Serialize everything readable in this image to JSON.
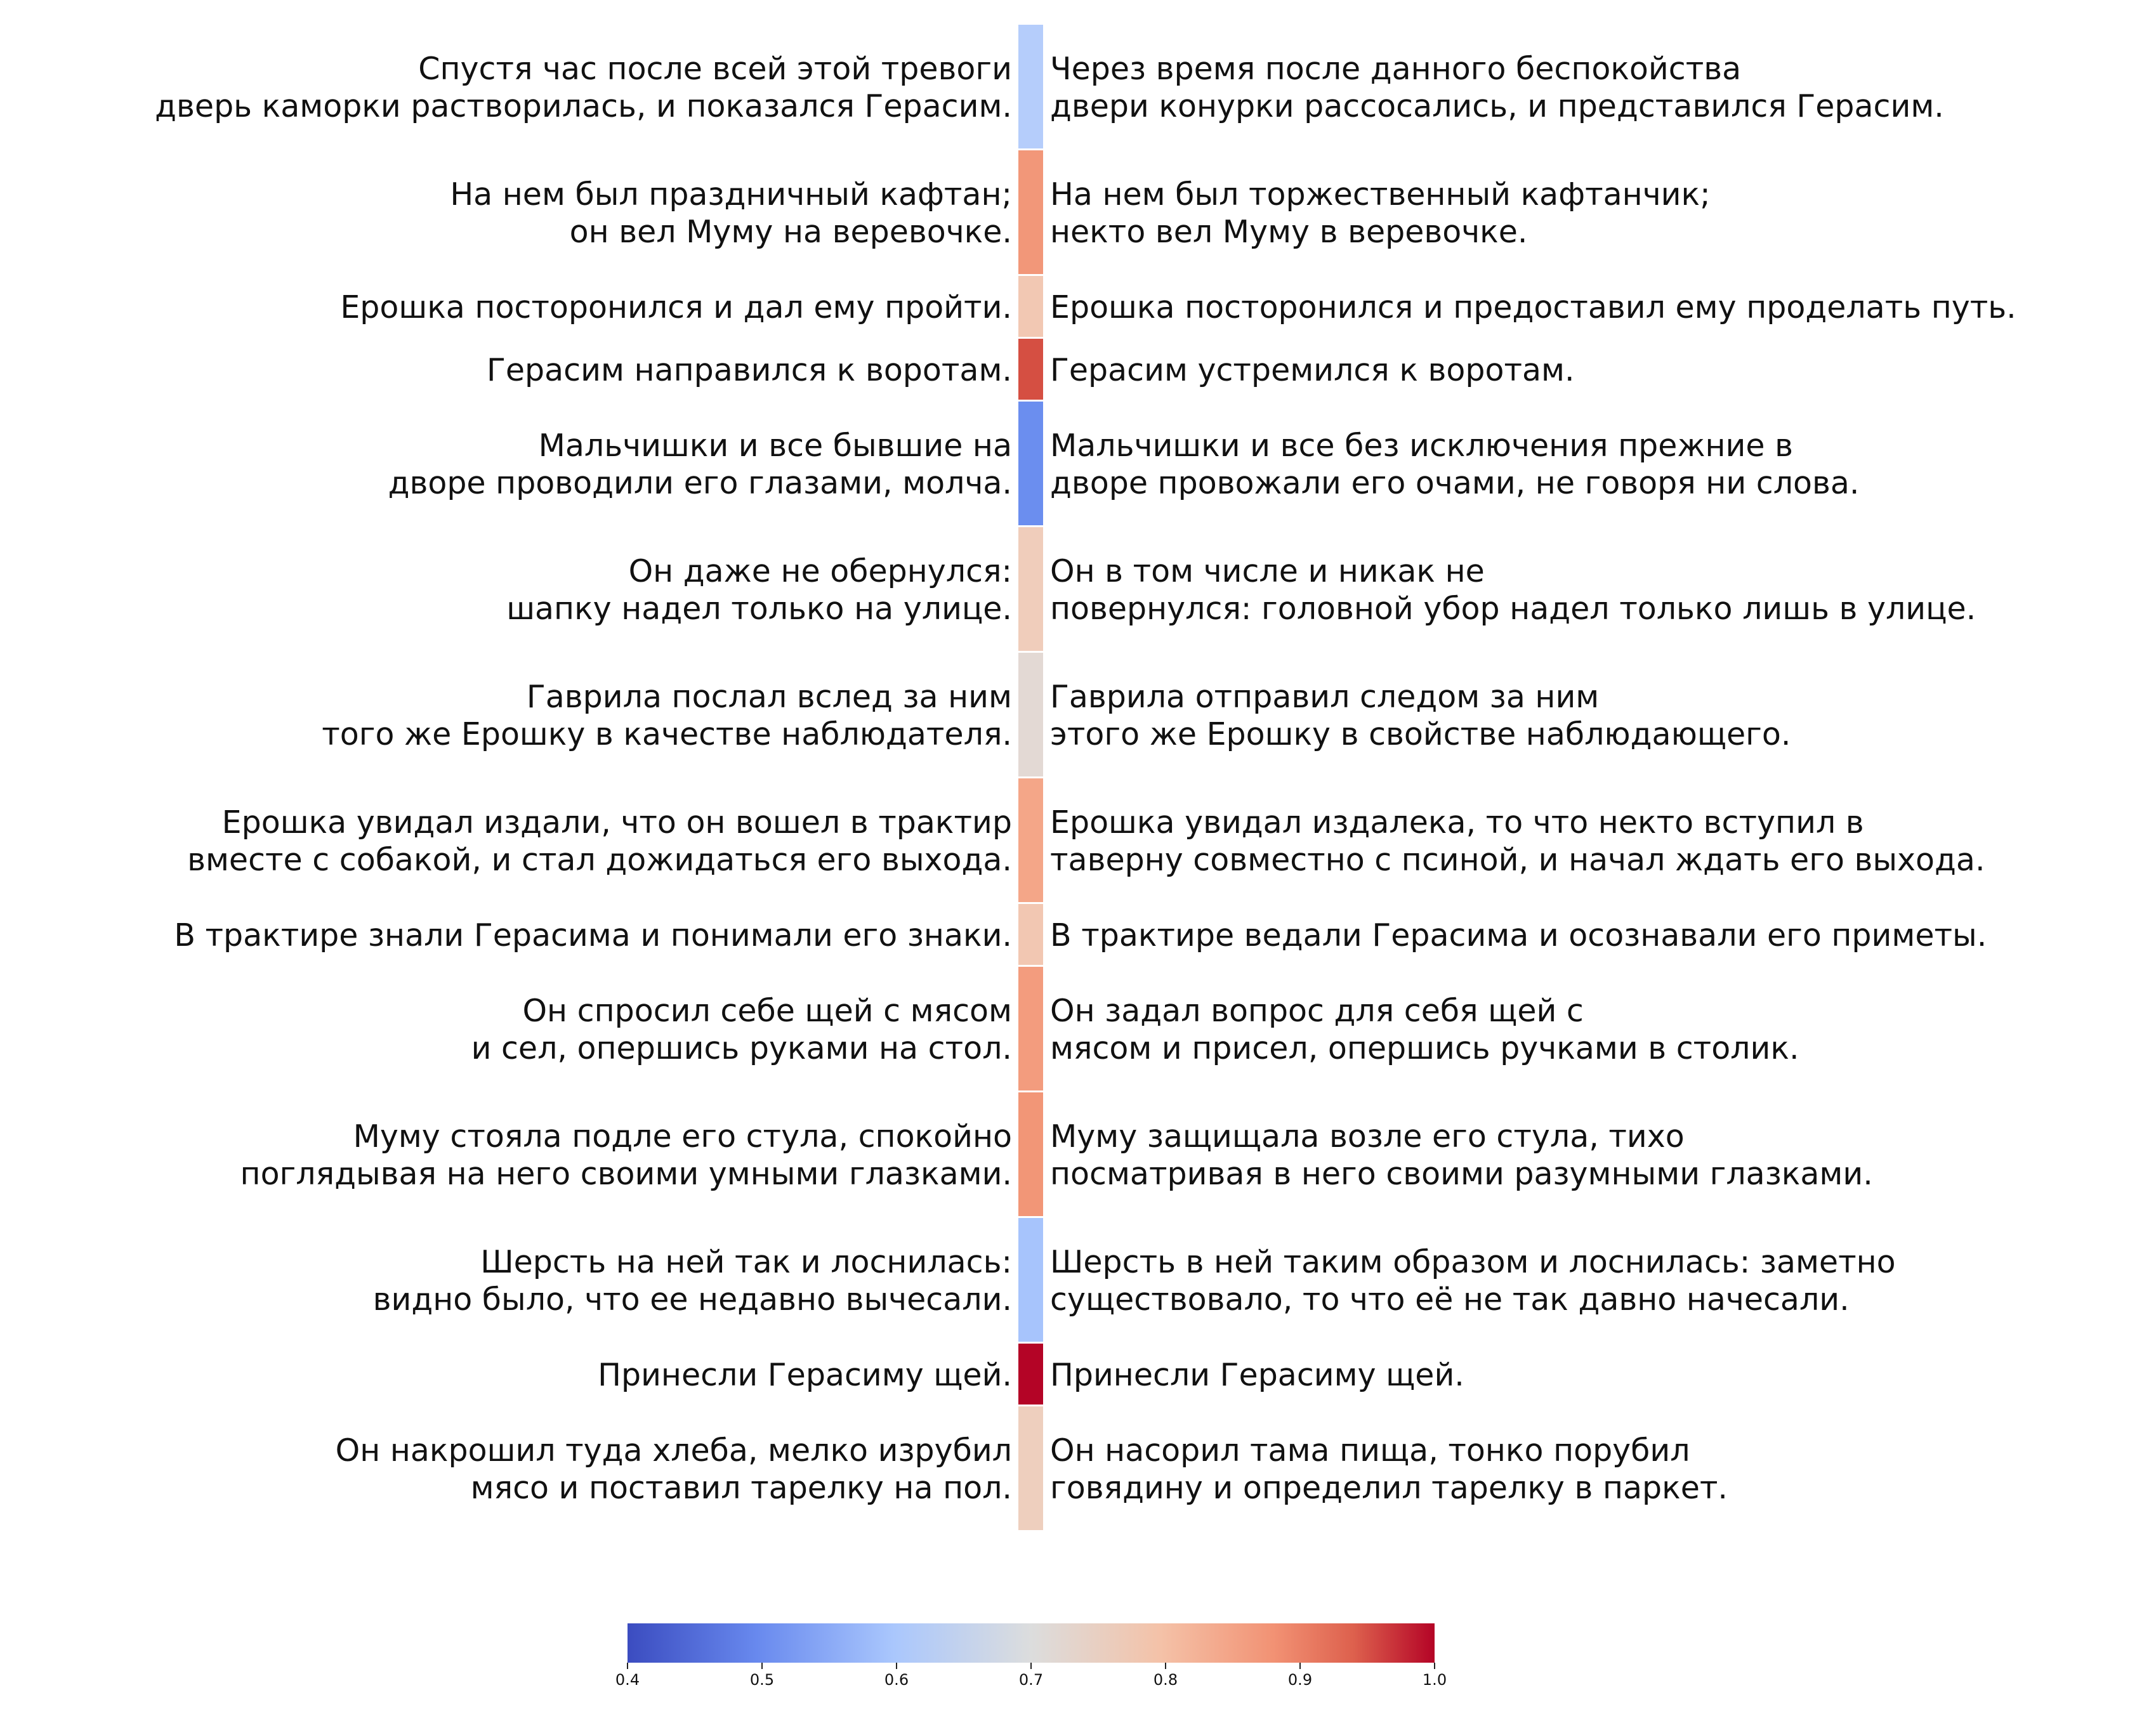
{
  "chart_data": {
    "type": "heatmap",
    "colormap": "coolwarm",
    "rows": [
      {
        "source": "Спустя час после всей этой тревоги\nдверь каморки растворилась, и показался Герасим.",
        "target": "Через время после данного беспокойства\nдвери конурки рассосались, и представился Герасим.",
        "value": 0.6,
        "color": "#b5cdfb"
      },
      {
        "source": "На нем был праздничный кафтан;\nон вел Муму на веревочке.",
        "target": "На нем был торжественный кафтанчик;\nнекто вел Муму в веревочке.",
        "value": 0.83,
        "color": "#f29779"
      },
      {
        "source": "Ерошка посторонился и дал ему пройти.",
        "target": "Ерошка посторонился и предоставил ему проделать путь.",
        "value": 0.77,
        "color": "#f2c8b3"
      },
      {
        "source": "Герасим направился к воротам.",
        "target": "Герасим устремился к воротам.",
        "value": 0.93,
        "color": "#d54f42"
      },
      {
        "source": "Мальчишки и все бывшие на\nдворе проводили его глазами, молча.",
        "target": "Мальчишки и все без исключения прежние в\nдворе провожали его очами, не говоря ни слова.",
        "value": 0.5,
        "color": "#6b8eef"
      },
      {
        "source": "Он даже не обернулся:\nшапку надел только на улице.",
        "target": "Он в том числе и никак не\nповернулся: головной убор надел только лишь в улице.",
        "value": 0.76,
        "color": "#f0cdbb"
      },
      {
        "source": "Гаврила послал вслед за ним\nтого же Ерошку в качестве наблюдателя.",
        "target": "Гаврила отправил следом за ним\nэтого же Ерошку в свойстве наблюдающего.",
        "value": 0.71,
        "color": "#e3d9d4"
      },
      {
        "source": "Ерошка увидал издали, что он вошел в трактир\nвместе с собакой, и стал дожидаться его выхода.",
        "target": "Ерошка увидал издалека, то что некто вступил в\nтаверну совместно с псиной, и начал ждать его выхода.",
        "value": 0.81,
        "color": "#f4a688"
      },
      {
        "source": "В трактире знали Герасима и понимали его знаки.",
        "target": "В трактире ведали Герасима и осознавали его приметы.",
        "value": 0.77,
        "color": "#f2c7b2"
      },
      {
        "source": "Он спросил себе щей с мясом\nи сел, опершись руками на стол.",
        "target": "Он задал вопрос для себя щей с\nмясом и присел, опершись ручками в столик.",
        "value": 0.83,
        "color": "#f39c7e"
      },
      {
        "source": "Муму стояла подле его стула, спокойно\nпоглядывая на него своими умными глазками.",
        "target": "Муму защищала возле его стула, тихо\nпосматривая в него своими разумными глазками.",
        "value": 0.84,
        "color": "#f29677"
      },
      {
        "source": "Шерсть на ней так и лоснилась:\nвидно было, что ее недавно вычесали.",
        "target": "Шерсть в ней таким образом и лоснилась: заметно\nсуществовало, то что её не так давно начесали.",
        "value": 0.59,
        "color": "#a7c4fc"
      },
      {
        "source": "Принесли Герасиму щей.",
        "target": "Принесли Герасиму щей.",
        "value": 1.0,
        "color": "#b40426"
      },
      {
        "source": "Он накрошил туда хлеба, мелко изрубил\nмясо и поставил тарелку на пол.",
        "target": "Он насорил тама пища, тонко порубил\nговядину и определил тарелку в паркет.",
        "value": 0.75,
        "color": "#eecfbe"
      }
    ],
    "colorbar": {
      "range": [
        0.4,
        1.0
      ],
      "ticks": [
        "0.4",
        "0.5",
        "0.6",
        "0.7",
        "0.8",
        "0.9",
        "1.0"
      ]
    }
  }
}
